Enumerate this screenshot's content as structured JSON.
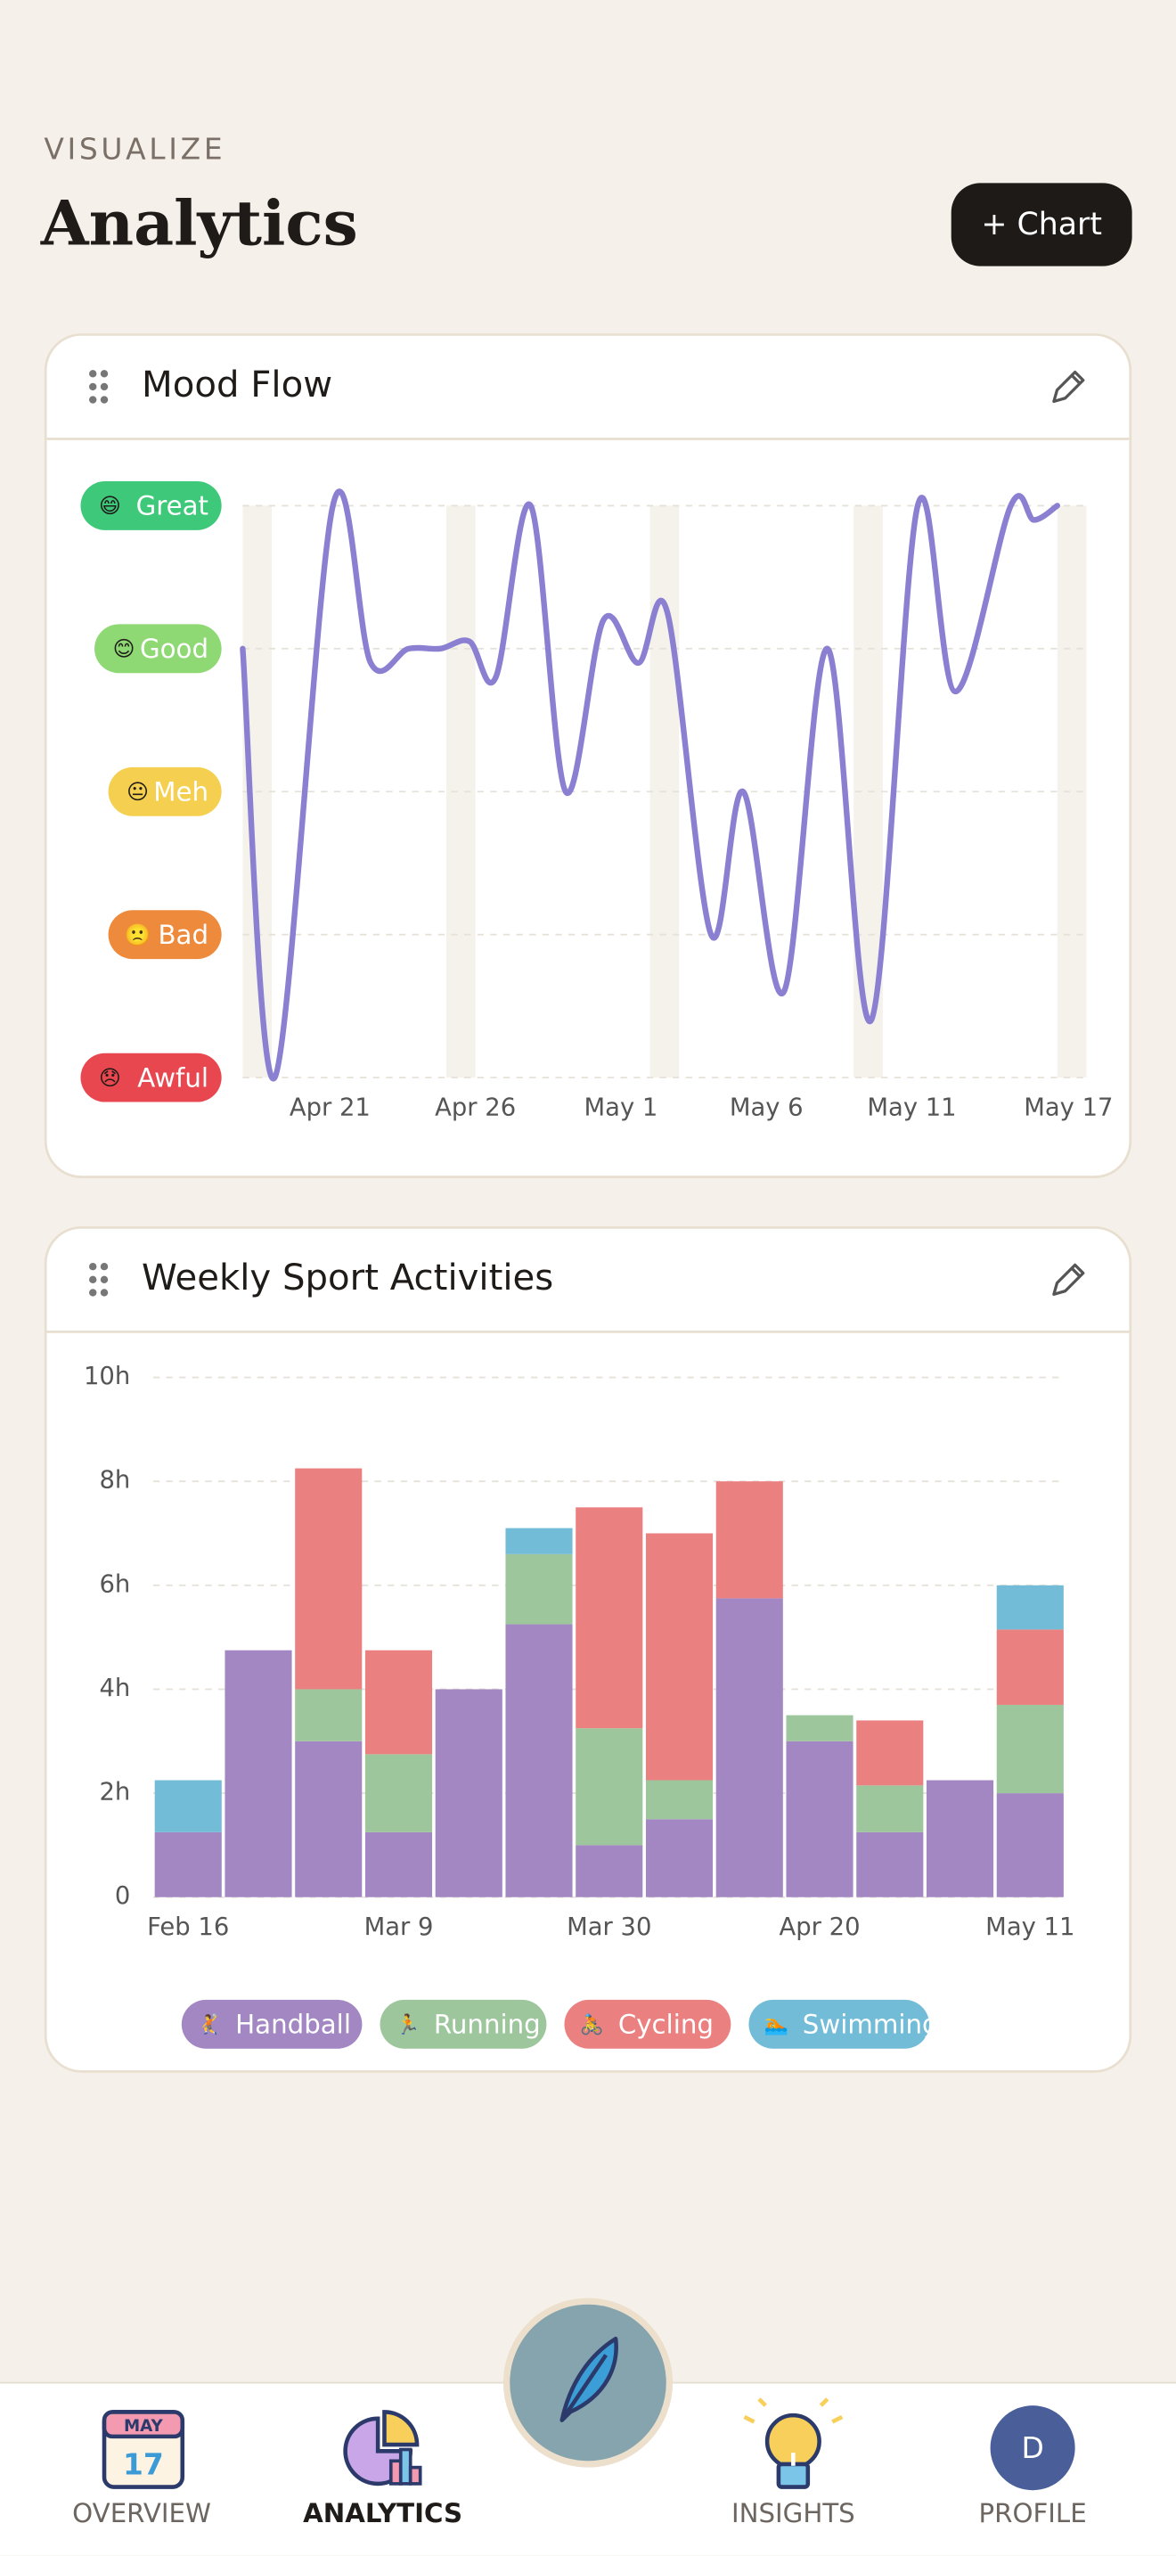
{
  "header": {
    "eyebrow": "VISUALIZE",
    "title": "Analytics",
    "button": "+ Chart"
  },
  "chart_data": [
    {
      "type": "line",
      "title": "Mood Flow",
      "x": [
        18,
        19.1,
        21.1,
        22.4,
        23.7,
        24.8,
        25.8,
        26.7,
        27.9,
        29.1,
        30.4,
        31.6,
        32.6,
        34.1,
        35.2,
        36.6,
        38.1,
        39.6,
        41.2,
        42.5,
        44.4,
        45.2,
        46
      ],
      "values": [
        4,
        1,
        5,
        3.9,
        4,
        4,
        4.05,
        3.8,
        5,
        3,
        4.2,
        3.9,
        4.25,
        2,
        3,
        1.6,
        4,
        1.4,
        5,
        3.7,
        5,
        4.9,
        5
      ],
      "color": "#8a7fd0",
      "xlim": [
        18,
        47
      ],
      "xticks": [
        {
          "value": 21,
          "label": "Apr 21"
        },
        {
          "value": 26,
          "label": "Apr 26"
        },
        {
          "value": 31,
          "label": "May 1"
        },
        {
          "value": 36,
          "label": "May 6"
        },
        {
          "value": 41,
          "label": "May 11"
        },
        {
          "value": 47,
          "label": "May 17"
        }
      ],
      "ylim": [
        1,
        5
      ],
      "yticks": [
        {
          "value": 5,
          "label": "Great"
        },
        {
          "value": 4,
          "label": "Good"
        },
        {
          "value": 3,
          "label": "Meh"
        },
        {
          "value": 2,
          "label": "Bad"
        },
        {
          "value": 1,
          "label": "Awful"
        }
      ],
      "ytick_icons": [
        "😄",
        "😊",
        "😐",
        "🙁",
        "😞"
      ],
      "ytick_colors": [
        "#3ec97a",
        "#8ed974",
        "#f5cf4f",
        "#ee8a3c",
        "#e9474f"
      ],
      "shaded_days": [
        18,
        25,
        32,
        39,
        46
      ],
      "grid": true
    },
    {
      "type": "bar",
      "stacked": true,
      "title": "Weekly Sport Activities",
      "categories": [
        "Feb 16",
        null,
        null,
        "Mar 9",
        null,
        null,
        "Mar 30",
        null,
        null,
        "Apr 20",
        null,
        null,
        "May 11"
      ],
      "series": [
        {
          "name": "Handball",
          "icon": "🤾",
          "color": "#a387c3",
          "values": [
            1.25,
            4.75,
            3,
            1.25,
            4,
            5.25,
            1,
            1.5,
            5.75,
            3,
            1.25,
            2.25,
            2
          ]
        },
        {
          "name": "Running",
          "icon": "🏃",
          "color": "#9dc69c",
          "values": [
            0,
            0,
            1,
            1.5,
            0,
            1.35,
            2.25,
            0.75,
            0,
            0.5,
            0.9,
            0,
            1.7
          ]
        },
        {
          "name": "Cycling",
          "icon": "🚴",
          "color": "#eb8080",
          "values": [
            0,
            0,
            4.25,
            2,
            0,
            0,
            4.25,
            4.75,
            2.25,
            0,
            1.25,
            0,
            1.45
          ]
        },
        {
          "name": "Swimming",
          "icon": "🏊",
          "color": "#72bcd8",
          "values": [
            1,
            0,
            0,
            0,
            0,
            0.5,
            0,
            0,
            0,
            0,
            0,
            0,
            0.85
          ]
        }
      ],
      "ylim": [
        0,
        10
      ],
      "yticks": [
        0,
        {
          "value": 2,
          "label": "2h"
        },
        {
          "value": 4,
          "label": "4h"
        },
        {
          "value": 6,
          "label": "6h"
        },
        {
          "value": 8,
          "label": "8h"
        },
        {
          "value": 10,
          "label": "10h"
        }
      ],
      "grid": true,
      "legend": "bottom"
    }
  ],
  "nav": {
    "items": [
      {
        "label": "OVERVIEW"
      },
      {
        "label": "ANALYTICS"
      },
      {
        "label": "INSIGHTS"
      },
      {
        "label": "PROFILE"
      }
    ],
    "active": 1,
    "calendar": {
      "month": "MAY",
      "day": "17"
    },
    "avatar": "D"
  }
}
